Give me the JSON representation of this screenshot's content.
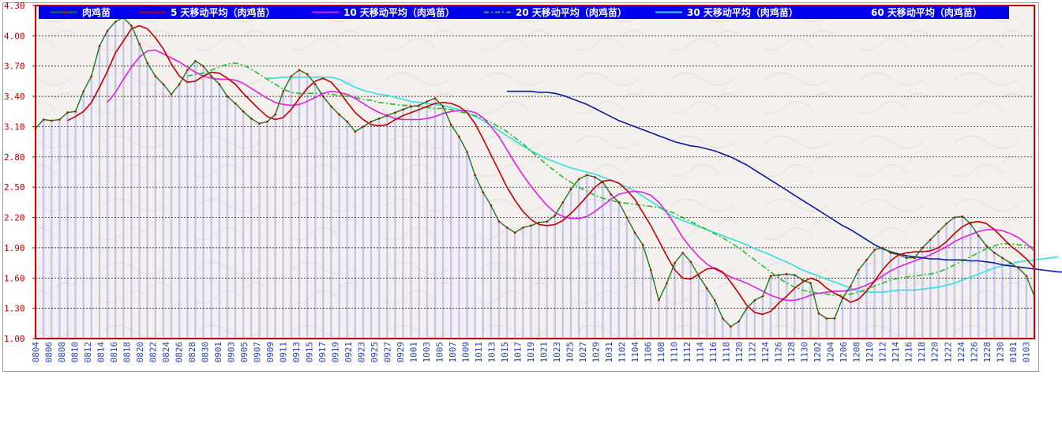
{
  "chart_data": {
    "type": "line",
    "ylim": [
      1.0,
      4.3
    ],
    "yticks": [
      "4.30",
      "4.00",
      "3.70",
      "3.40",
      "3.10",
      "2.80",
      "2.50",
      "2.20",
      "1.90",
      "1.60",
      "1.30",
      "1.00"
    ],
    "ytick_values": [
      4.3,
      4.0,
      3.7,
      3.4,
      3.1,
      2.8,
      2.5,
      2.2,
      1.9,
      1.6,
      1.3,
      1.0
    ],
    "xticks": [
      "0804",
      "0806",
      "0808",
      "0810",
      "0812",
      "0814",
      "0816",
      "0818",
      "0820",
      "0822",
      "0824",
      "0826",
      "0828",
      "0830",
      "0901",
      "0903",
      "0905",
      "0907",
      "0909",
      "0911",
      "0913",
      "0915",
      "0917",
      "0919",
      "0921",
      "0923",
      "0925",
      "0927",
      "0929",
      "1001",
      "1003",
      "1005",
      "1007",
      "1009",
      "1011",
      "1013",
      "1015",
      "1017",
      "1019",
      "1021",
      "1023",
      "1025",
      "1027",
      "1029",
      "1031",
      "1102",
      "1104",
      "1106",
      "1108",
      "1110",
      "1112",
      "1114",
      "1116",
      "1118",
      "1120",
      "1122",
      "1124",
      "1126",
      "1128",
      "1130",
      "1202",
      "1204",
      "1206",
      "1208",
      "1210",
      "1212",
      "1214",
      "1216",
      "1218",
      "1220",
      "1222",
      "1224",
      "1226",
      "1228",
      "1230",
      "0101",
      "0103"
    ],
    "grid": true,
    "legend_placement": "top",
    "background_bars": true,
    "series": [
      {
        "name": "肉鸡苗",
        "color": "#1a7a1a",
        "markers": true,
        "values": [
          3.08,
          3.17,
          3.16,
          3.17,
          3.24,
          3.25,
          3.45,
          3.6,
          3.9,
          4.05,
          4.14,
          4.18,
          4.1,
          3.92,
          3.73,
          3.6,
          3.52,
          3.42,
          3.52,
          3.66,
          3.75,
          3.7,
          3.6,
          3.52,
          3.4,
          3.33,
          3.25,
          3.18,
          3.13,
          3.15,
          3.22,
          3.45,
          3.6,
          3.66,
          3.62,
          3.52,
          3.4,
          3.3,
          3.22,
          3.15,
          3.05,
          3.1,
          3.15,
          3.18,
          3.21,
          3.24,
          3.27,
          3.3,
          3.31,
          3.35,
          3.38,
          3.3,
          3.12,
          3.0,
          2.85,
          2.62,
          2.45,
          2.32,
          2.16,
          2.1,
          2.05,
          2.1,
          2.12,
          2.15,
          2.16,
          2.22,
          2.35,
          2.48,
          2.58,
          2.62,
          2.6,
          2.55,
          2.43,
          2.35,
          2.2,
          2.05,
          1.93,
          1.68,
          1.38,
          1.55,
          1.75,
          1.85,
          1.76,
          1.62,
          1.5,
          1.38,
          1.2,
          1.12,
          1.17,
          1.3,
          1.38,
          1.42,
          1.62,
          1.63,
          1.64,
          1.63,
          1.58,
          1.55,
          1.25,
          1.2,
          1.2,
          1.4,
          1.52,
          1.68,
          1.78,
          1.88,
          1.9,
          1.85,
          1.83,
          1.8,
          1.8,
          1.9,
          1.98,
          2.06,
          2.14,
          2.2,
          2.21,
          2.14,
          2.02,
          1.92,
          1.85,
          1.8,
          1.75,
          1.7,
          1.62,
          1.42
        ]
      },
      {
        "name": "5 天移动平均（肉鸡苗）",
        "color": "#c00000",
        "values": [
          null,
          null,
          null,
          null,
          3.16,
          3.2,
          3.25,
          3.34,
          3.49,
          3.65,
          3.83,
          3.95,
          4.07,
          4.1,
          4.07,
          3.98,
          3.87,
          3.72,
          3.6,
          3.54,
          3.55,
          3.6,
          3.64,
          3.63,
          3.58,
          3.52,
          3.43,
          3.35,
          3.27,
          3.2,
          3.17,
          3.19,
          3.27,
          3.38,
          3.48,
          3.55,
          3.58,
          3.54,
          3.45,
          3.34,
          3.24,
          3.17,
          3.12,
          3.11,
          3.12,
          3.17,
          3.21,
          3.24,
          3.27,
          3.3,
          3.33,
          3.34,
          3.33,
          3.3,
          3.24,
          3.13,
          2.98,
          2.82,
          2.66,
          2.5,
          2.37,
          2.26,
          2.18,
          2.13,
          2.12,
          2.13,
          2.17,
          2.24,
          2.32,
          2.41,
          2.5,
          2.56,
          2.57,
          2.54,
          2.47,
          2.38,
          2.25,
          2.12,
          1.97,
          1.82,
          1.68,
          1.6,
          1.59,
          1.64,
          1.69,
          1.7,
          1.66,
          1.56,
          1.45,
          1.33,
          1.26,
          1.24,
          1.27,
          1.35,
          1.42,
          1.5,
          1.56,
          1.6,
          1.57,
          1.5,
          1.45,
          1.41,
          1.36,
          1.39,
          1.47,
          1.57,
          1.68,
          1.77,
          1.83,
          1.85,
          1.86,
          1.86,
          1.87,
          1.9,
          1.96,
          2.04,
          2.11,
          2.15,
          2.16,
          2.14,
          2.08,
          2.0,
          1.92,
          1.86,
          1.79,
          1.7
        ]
      },
      {
        "name": "10 天移动平均（肉鸡苗）",
        "color": "#e020e0",
        "values": [
          null,
          null,
          null,
          null,
          null,
          null,
          null,
          null,
          null,
          3.34,
          3.44,
          3.57,
          3.69,
          3.79,
          3.85,
          3.86,
          3.82,
          3.78,
          3.74,
          3.69,
          3.64,
          3.6,
          3.58,
          3.57,
          3.57,
          3.56,
          3.53,
          3.48,
          3.43,
          3.38,
          3.34,
          3.32,
          3.31,
          3.32,
          3.35,
          3.39,
          3.43,
          3.45,
          3.44,
          3.42,
          3.38,
          3.33,
          3.28,
          3.24,
          3.21,
          3.18,
          3.17,
          3.17,
          3.17,
          3.18,
          3.2,
          3.23,
          3.25,
          3.26,
          3.26,
          3.24,
          3.19,
          3.1,
          3.0,
          2.87,
          2.74,
          2.62,
          2.51,
          2.41,
          2.32,
          2.25,
          2.21,
          2.19,
          2.19,
          2.21,
          2.26,
          2.32,
          2.38,
          2.43,
          2.45,
          2.46,
          2.45,
          2.42,
          2.35,
          2.25,
          2.13,
          2.0,
          1.9,
          1.81,
          1.74,
          1.69,
          1.65,
          1.61,
          1.58,
          1.55,
          1.51,
          1.47,
          1.43,
          1.4,
          1.38,
          1.38,
          1.4,
          1.43,
          1.45,
          1.46,
          1.47,
          1.47,
          1.48,
          1.5,
          1.53,
          1.57,
          1.62,
          1.67,
          1.71,
          1.74,
          1.77,
          1.8,
          1.83,
          1.87,
          1.91,
          1.96,
          2.0,
          2.03,
          2.06,
          2.08,
          2.08,
          2.07,
          2.04,
          2.0,
          1.94,
          1.87
        ]
      },
      {
        "name": "20 天移动平均（肉鸡苗）",
        "color": "#20c020",
        "dashed": true,
        "values": [
          null,
          null,
          null,
          null,
          null,
          null,
          null,
          null,
          null,
          null,
          null,
          null,
          null,
          null,
          null,
          null,
          null,
          null,
          null,
          3.6,
          3.62,
          3.63,
          3.66,
          3.69,
          3.72,
          3.73,
          3.71,
          3.67,
          3.62,
          3.57,
          3.52,
          3.47,
          3.44,
          3.43,
          3.43,
          3.43,
          3.43,
          3.42,
          3.41,
          3.4,
          3.39,
          3.37,
          3.36,
          3.34,
          3.33,
          3.32,
          3.31,
          3.31,
          3.3,
          3.29,
          3.28,
          3.28,
          3.27,
          3.25,
          3.23,
          3.21,
          3.18,
          3.14,
          3.1,
          3.05,
          2.99,
          2.93,
          2.86,
          2.79,
          2.72,
          2.66,
          2.6,
          2.55,
          2.5,
          2.46,
          2.42,
          2.39,
          2.37,
          2.35,
          2.34,
          2.33,
          2.32,
          2.31,
          2.3,
          2.27,
          2.24,
          2.2,
          2.16,
          2.12,
          2.08,
          2.04,
          2.0,
          1.95,
          1.9,
          1.84,
          1.78,
          1.72,
          1.66,
          1.6,
          1.55,
          1.51,
          1.48,
          1.46,
          1.45,
          1.44,
          1.43,
          1.43,
          1.44,
          1.46,
          1.49,
          1.52,
          1.55,
          1.58,
          1.6,
          1.61,
          1.62,
          1.63,
          1.64,
          1.66,
          1.69,
          1.73,
          1.77,
          1.81,
          1.85,
          1.89,
          1.92,
          1.94,
          1.94,
          1.93,
          1.92,
          1.9
        ]
      },
      {
        "name": "30 天移动平均（肉鸡苗）",
        "color": "#30e0e0",
        "values": [
          null,
          null,
          null,
          null,
          null,
          null,
          null,
          null,
          null,
          null,
          null,
          null,
          null,
          null,
          null,
          null,
          null,
          null,
          null,
          null,
          null,
          null,
          null,
          null,
          null,
          null,
          null,
          null,
          null,
          3.58,
          3.58,
          3.59,
          3.59,
          3.59,
          3.59,
          3.59,
          3.59,
          3.59,
          3.57,
          3.53,
          3.49,
          3.46,
          3.44,
          3.42,
          3.41,
          3.39,
          3.37,
          3.35,
          3.34,
          3.33,
          3.32,
          3.31,
          3.29,
          3.27,
          3.24,
          3.2,
          3.16,
          3.11,
          3.06,
          3.01,
          2.96,
          2.91,
          2.86,
          2.82,
          2.78,
          2.75,
          2.72,
          2.69,
          2.67,
          2.65,
          2.63,
          2.6,
          2.57,
          2.54,
          2.5,
          2.46,
          2.41,
          2.36,
          2.31,
          2.25,
          2.2,
          2.17,
          2.14,
          2.11,
          2.08,
          2.05,
          2.02,
          1.99,
          1.96,
          1.93,
          1.89,
          1.86,
          1.83,
          1.79,
          1.76,
          1.72,
          1.68,
          1.65,
          1.62,
          1.59,
          1.56,
          1.53,
          1.5,
          1.47,
          1.46,
          1.46,
          1.46,
          1.47,
          1.48,
          1.48,
          1.48,
          1.49,
          1.5,
          1.51,
          1.53,
          1.55,
          1.58,
          1.61,
          1.64,
          1.67,
          1.7,
          1.72,
          1.74,
          1.76,
          1.77,
          1.78,
          1.79,
          1.8,
          1.81
        ]
      },
      {
        "name": "60 天移动平均（肉鸡苗）",
        "color": "#0a1a9a",
        "values": [
          null,
          null,
          null,
          null,
          null,
          null,
          null,
          null,
          null,
          null,
          null,
          null,
          null,
          null,
          null,
          null,
          null,
          null,
          null,
          null,
          null,
          null,
          null,
          null,
          null,
          null,
          null,
          null,
          null,
          null,
          null,
          null,
          null,
          null,
          null,
          null,
          null,
          null,
          null,
          null,
          null,
          null,
          null,
          null,
          null,
          null,
          null,
          null,
          null,
          null,
          null,
          null,
          null,
          null,
          null,
          null,
          null,
          null,
          null,
          3.45,
          3.45,
          3.45,
          3.45,
          3.44,
          3.44,
          3.43,
          3.41,
          3.38,
          3.35,
          3.32,
          3.28,
          3.24,
          3.2,
          3.16,
          3.13,
          3.1,
          3.07,
          3.04,
          3.01,
          2.98,
          2.95,
          2.93,
          2.91,
          2.9,
          2.88,
          2.86,
          2.83,
          2.8,
          2.76,
          2.72,
          2.67,
          2.62,
          2.57,
          2.52,
          2.47,
          2.42,
          2.37,
          2.32,
          2.27,
          2.22,
          2.17,
          2.12,
          2.08,
          2.03,
          1.98,
          1.93,
          1.89,
          1.86,
          1.84,
          1.82,
          1.81,
          1.8,
          1.79,
          1.79,
          1.78,
          1.78,
          1.78,
          1.77,
          1.77,
          1.76,
          1.75,
          1.73,
          1.72,
          1.71,
          1.7,
          1.69,
          1.68,
          1.67,
          1.66,
          1.66
        ]
      }
    ]
  }
}
